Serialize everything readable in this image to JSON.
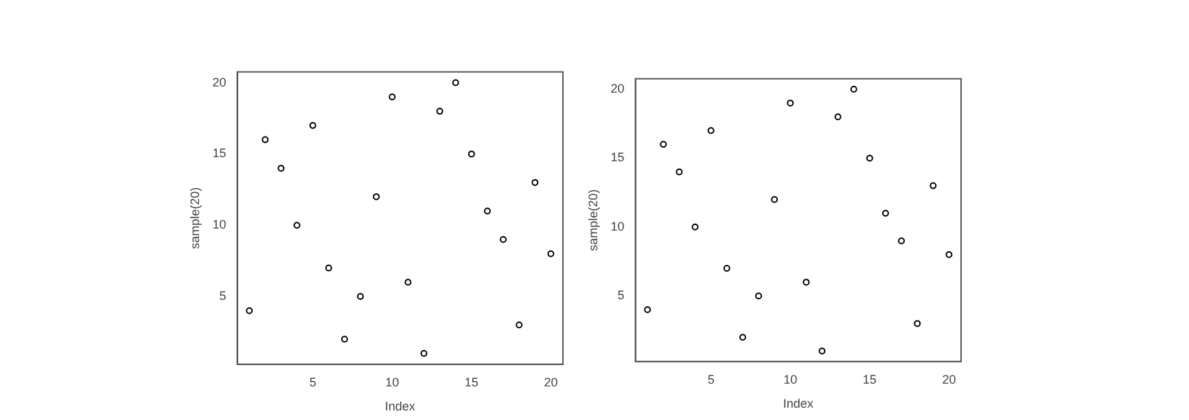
{
  "chart_data": [
    {
      "type": "scatter",
      "xlabel": "Index",
      "ylabel": "sample(20)",
      "x": [
        1,
        2,
        3,
        4,
        5,
        6,
        7,
        8,
        9,
        10,
        11,
        12,
        13,
        14,
        15,
        16,
        17,
        18,
        19,
        20
      ],
      "values": [
        4,
        16,
        14,
        10,
        17,
        7,
        2,
        5,
        12,
        19,
        6,
        1,
        18,
        20,
        15,
        11,
        9,
        3,
        13,
        8
      ],
      "color": "#000000",
      "marker": "circle",
      "xlim": [
        0.24,
        20.76
      ],
      "ylim": [
        0.24,
        20.76
      ],
      "xticks": [
        5,
        10,
        15,
        20
      ],
      "yticks": [
        5,
        10,
        15,
        20
      ],
      "grid": false,
      "legend": false
    },
    {
      "type": "scatter",
      "xlabel": "Index",
      "ylabel": "sample(20)",
      "x": [
        1,
        2,
        3,
        4,
        5,
        6,
        7,
        8,
        9,
        10,
        11,
        12,
        13,
        14,
        15,
        16,
        17,
        18,
        19,
        20
      ],
      "values": [
        4,
        16,
        14,
        10,
        17,
        7,
        2,
        5,
        12,
        19,
        6,
        1,
        18,
        20,
        15,
        11,
        9,
        3,
        13,
        8
      ],
      "color": "#000000",
      "marker": "circle",
      "xlim": [
        0.24,
        20.76
      ],
      "ylim": [
        0.24,
        20.76
      ],
      "xticks": [
        5,
        10,
        15,
        20
      ],
      "yticks": [
        5,
        10,
        15,
        20
      ],
      "grid": false,
      "legend": false
    }
  ]
}
